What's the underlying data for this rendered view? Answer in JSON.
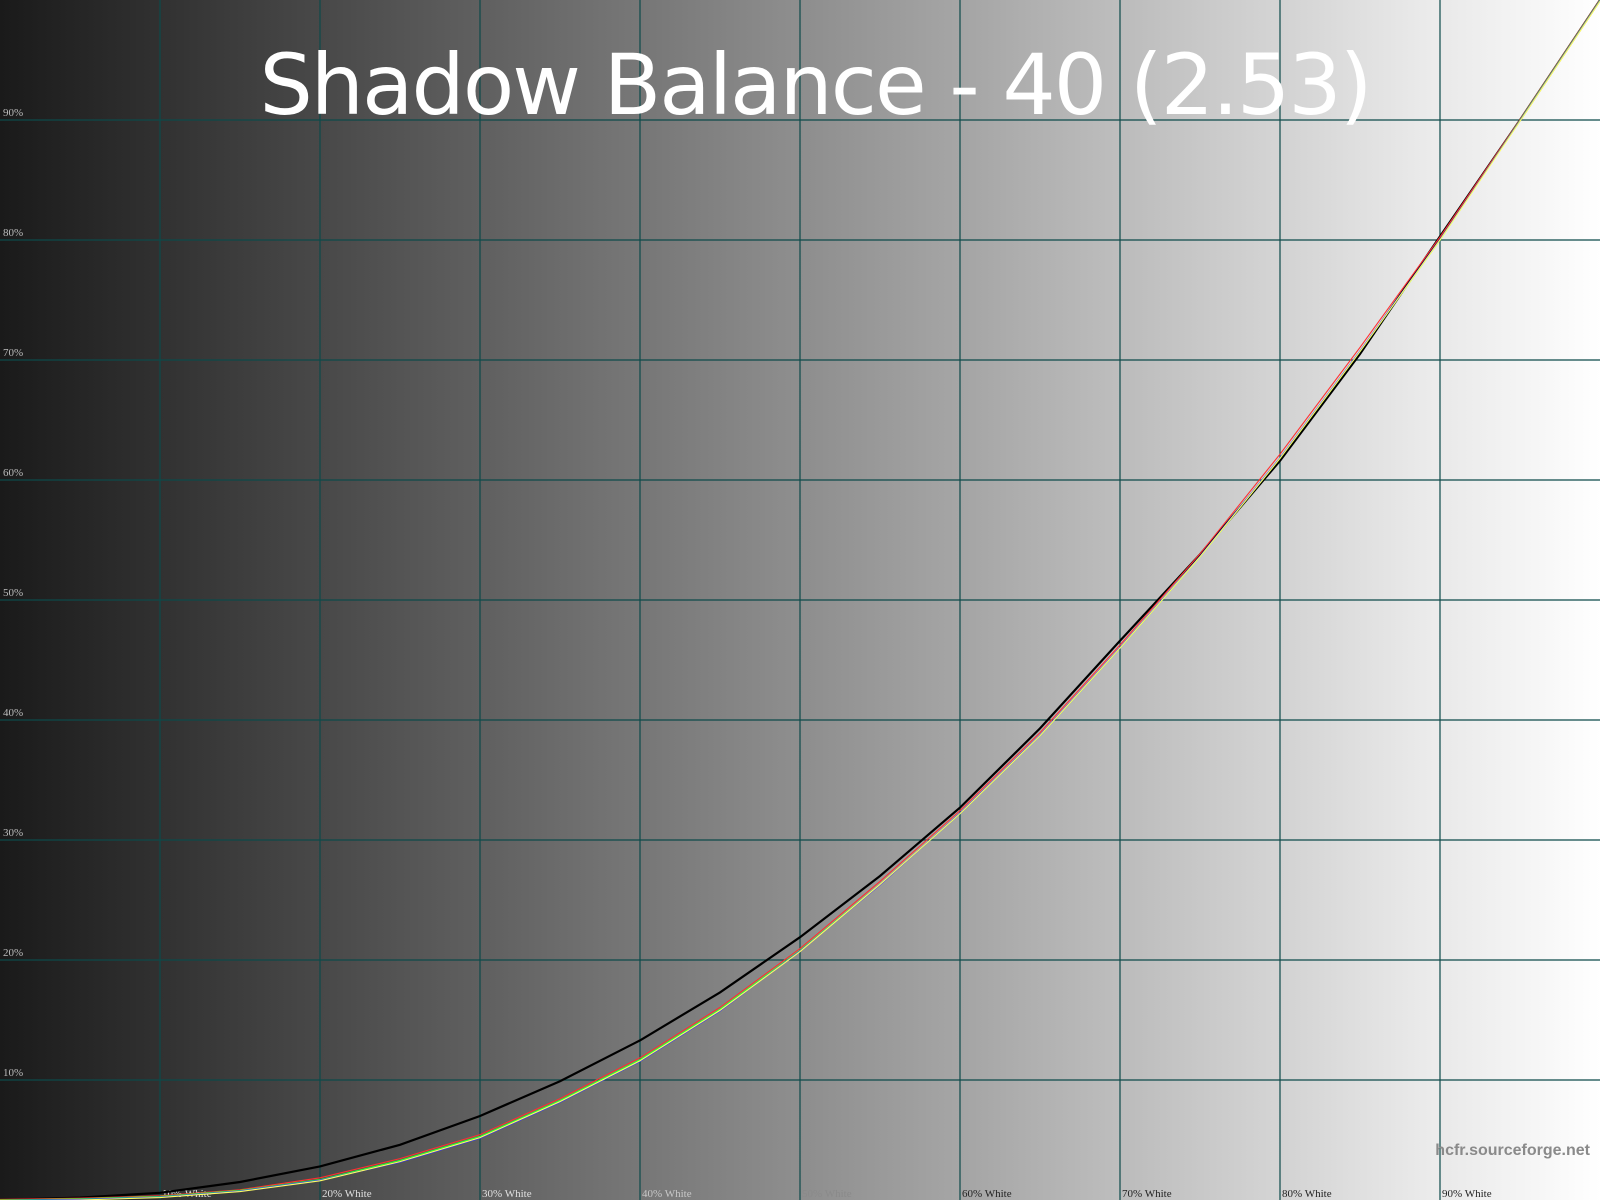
{
  "chart_data": {
    "type": "line",
    "title": "Shadow Balance - 40 (2.53)",
    "watermark": "hcfr.sourceforge.net",
    "xlim": [
      0,
      100
    ],
    "ylim": [
      0,
      100
    ],
    "grid": true,
    "x_tick_labels": [
      "10% White",
      "20% White",
      "30% White",
      "40% White",
      "50% White",
      "60% White",
      "70% White",
      "80% White",
      "90% White"
    ],
    "y_tick_labels": [
      "10%",
      "20%",
      "30%",
      "40%",
      "50%",
      "60%",
      "70%",
      "80%",
      "90%"
    ],
    "x": [
      0,
      5,
      10,
      15,
      20,
      25,
      30,
      35,
      40,
      45,
      50,
      55,
      60,
      65,
      70,
      75,
      80,
      85,
      90,
      95,
      100
    ],
    "series": [
      {
        "color": "#000000",
        "values": [
          0,
          0.2,
          0.6,
          1.5,
          2.8,
          4.6,
          7.0,
          9.9,
          13.3,
          17.3,
          21.9,
          27.0,
          32.7,
          39.3,
          46.6,
          53.8,
          61.6,
          70.5,
          80.3,
          90.0,
          100
        ]
      },
      {
        "color": "#ff3030",
        "values": [
          0,
          0.1,
          0.3,
          0.8,
          1.8,
          3.4,
          5.4,
          8.4,
          11.8,
          16.0,
          20.9,
          26.5,
          32.4,
          38.9,
          46.2,
          53.8,
          62.1,
          71.0,
          80.2,
          90.0,
          100
        ]
      },
      {
        "color": "#30ff30",
        "values": [
          0,
          0.1,
          0.3,
          0.8,
          1.7,
          3.3,
          5.3,
          8.3,
          11.7,
          15.9,
          20.8,
          26.3,
          32.2,
          38.7,
          46.0,
          53.6,
          61.8,
          70.7,
          80.0,
          90.0,
          100
        ]
      },
      {
        "color": "#3030ff",
        "values": [
          0,
          0.1,
          0.3,
          0.8,
          1.7,
          3.2,
          5.2,
          8.2,
          11.6,
          15.8,
          20.8,
          26.3,
          32.3,
          38.8,
          46.1,
          53.7,
          61.9,
          70.8,
          80.1,
          90.0,
          100
        ]
      },
      {
        "color": "#ffff60",
        "values": [
          0,
          0.1,
          0.3,
          0.8,
          1.7,
          3.3,
          5.3,
          8.3,
          11.7,
          15.9,
          20.8,
          26.4,
          32.3,
          38.8,
          46.1,
          53.7,
          61.9,
          70.8,
          80.1,
          90.0,
          100
        ]
      }
    ],
    "colors": {
      "grid": "#0c4a4a",
      "background_dark": "#1a1a1a",
      "background_light": "#ffffff"
    }
  }
}
